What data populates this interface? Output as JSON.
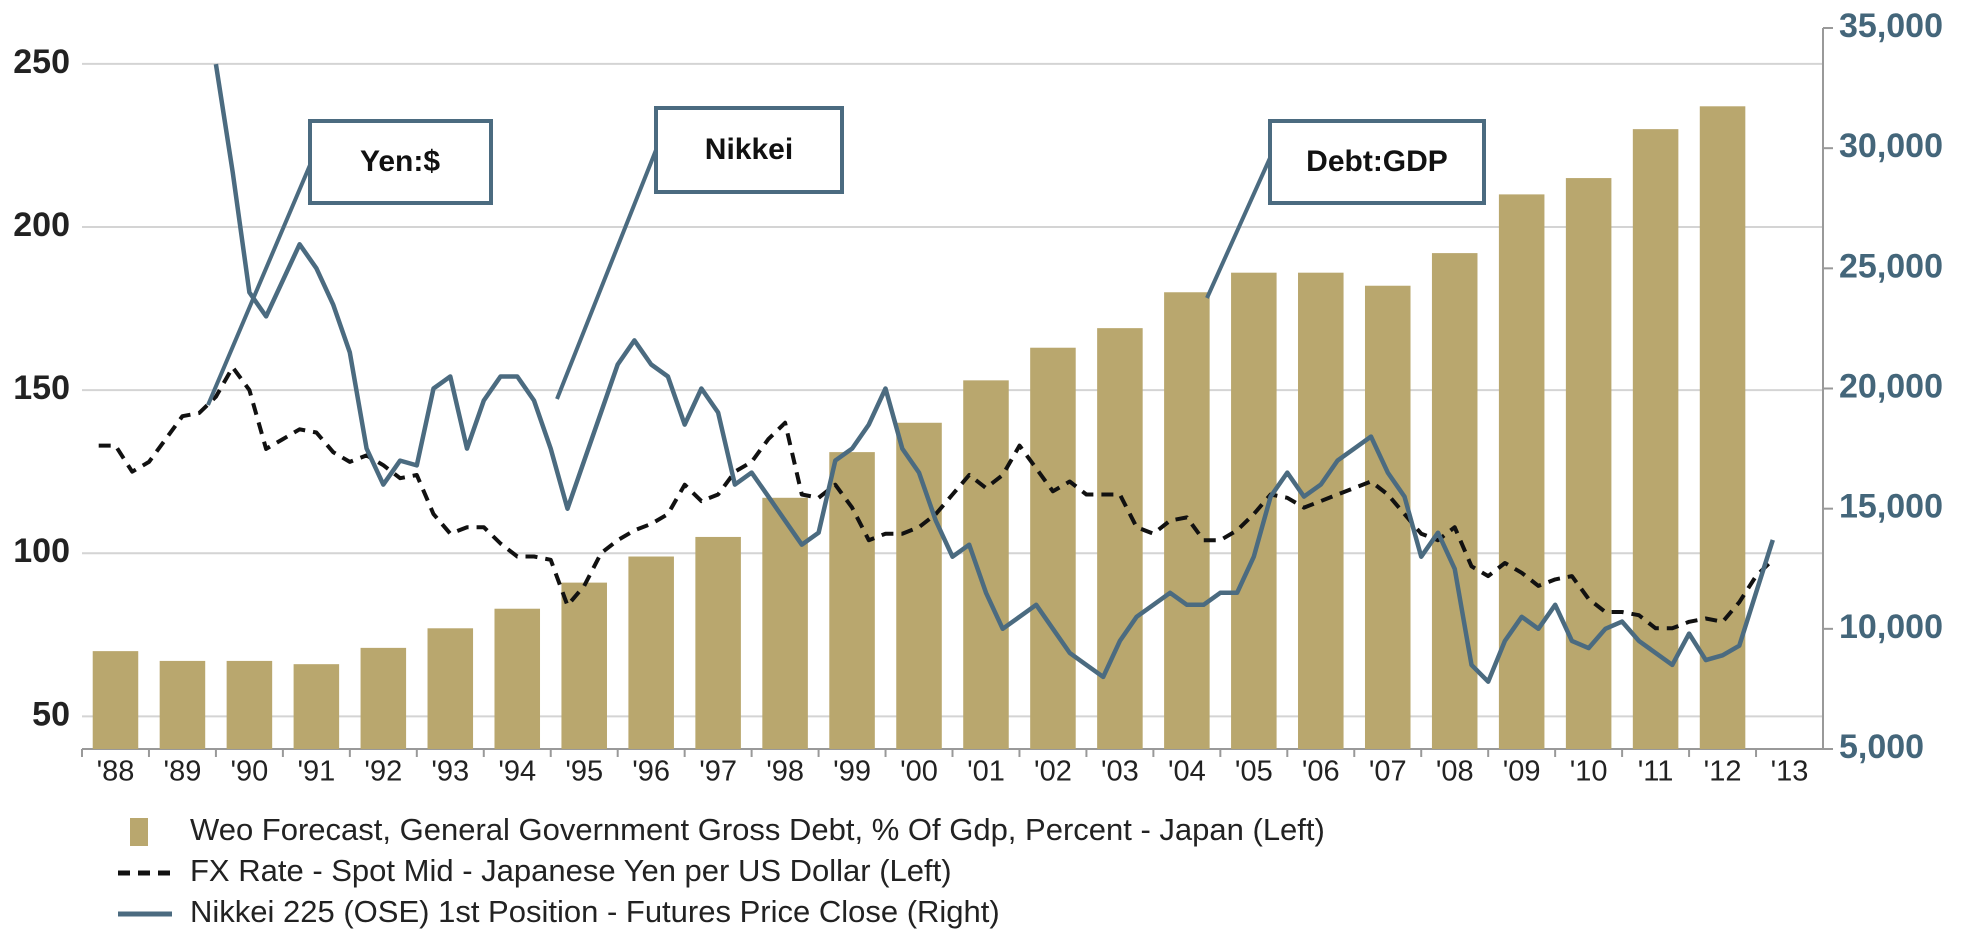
{
  "chart_data": {
    "type": "bar",
    "categories": [
      "'88",
      "'89",
      "'90",
      "'91",
      "'92",
      "'93",
      "'94",
      "'95",
      "'96",
      "'97",
      "'98",
      "'99",
      "'00",
      "'01",
      "'02",
      "'03",
      "'04",
      "'05",
      "'06",
      "'07",
      "'08",
      "'09",
      "'10",
      "'11",
      "'12",
      "'13"
    ],
    "xlim": [
      1988,
      2014
    ],
    "ylim": [
      40,
      261
    ],
    "yticks": [
      50,
      100,
      150,
      200,
      250
    ],
    "y2lim": [
      5000,
      35000
    ],
    "y2ticks": [
      {
        "value": 5000,
        "label": "5,000"
      },
      {
        "value": 10000,
        "label": "10,000"
      },
      {
        "value": 15000,
        "label": "15,000"
      },
      {
        "value": 20000,
        "label": "20,000"
      },
      {
        "value": 25000,
        "label": "25,000"
      },
      {
        "value": 30000,
        "label": "30,000"
      },
      {
        "value": 35000,
        "label": "35,000"
      }
    ],
    "grid": true,
    "annotations": [
      "Yen:$",
      "Nikkei",
      "Debt:GDP"
    ],
    "series": [
      {
        "name": "Weo Forecast, General Government Gross Debt, % Of Gdp, Percent - Japan  (Left)",
        "type": "bar",
        "color": "#b9a76e",
        "axis": "y",
        "values": [
          70,
          67,
          67,
          66,
          71,
          77,
          83,
          91,
          99,
          105,
          117,
          131,
          140,
          153,
          163,
          169,
          180,
          186,
          186,
          182,
          192,
          210,
          215,
          230,
          237,
          null
        ]
      },
      {
        "name": "FX Rate - Spot Mid - Japanese Yen per US Dollar  (Left)",
        "type": "line",
        "style": "dashed",
        "color": "#111111",
        "axis": "y",
        "x": [
          1988.25,
          1988.5,
          1988.75,
          1989,
          1989.25,
          1989.5,
          1989.75,
          1990,
          1990.25,
          1990.5,
          1990.75,
          1991,
          1991.25,
          1991.5,
          1991.75,
          1992,
          1992.25,
          1992.5,
          1992.75,
          1993,
          1993.25,
          1993.5,
          1993.75,
          1994,
          1994.25,
          1994.5,
          1994.75,
          1995,
          1995.25,
          1995.5,
          1995.75,
          1996,
          1996.25,
          1996.5,
          1996.75,
          1997,
          1997.25,
          1997.5,
          1997.75,
          1998,
          1998.25,
          1998.5,
          1998.75,
          1999,
          1999.25,
          1999.5,
          1999.75,
          2000,
          2000.25,
          2000.5,
          2000.75,
          2001,
          2001.25,
          2001.5,
          2001.75,
          2002,
          2002.25,
          2002.5,
          2002.75,
          2003,
          2003.25,
          2003.5,
          2003.75,
          2004,
          2004.25,
          2004.5,
          2004.75,
          2005,
          2005.25,
          2005.5,
          2005.75,
          2006,
          2006.25,
          2006.5,
          2006.75,
          2007,
          2007.25,
          2007.5,
          2007.75,
          2008,
          2008.25,
          2008.5,
          2008.75,
          2009,
          2009.25,
          2009.5,
          2009.75,
          2010,
          2010.25,
          2010.5,
          2010.75,
          2011,
          2011.25,
          2011.5,
          2011.75,
          2012,
          2012.25,
          2012.5,
          2012.75,
          2013,
          2013.25
        ],
        "values": [
          133,
          133,
          125,
          128,
          135,
          142,
          143,
          148,
          157,
          150,
          132,
          135,
          138,
          137,
          131,
          128,
          130,
          127,
          123,
          124,
          112,
          106,
          108,
          108,
          103,
          99,
          99,
          98,
          84,
          90,
          100,
          104,
          107,
          109,
          112,
          121,
          116,
          118,
          125,
          128,
          135,
          140,
          118,
          117,
          121,
          114,
          104,
          106,
          106,
          108,
          112,
          118,
          124,
          120,
          124,
          133,
          126,
          119,
          122,
          118,
          118,
          118,
          108,
          106,
          110,
          111,
          104,
          104,
          107,
          112,
          118,
          117,
          114,
          116,
          118,
          120,
          122,
          118,
          112,
          106,
          104,
          108,
          96,
          93,
          97,
          94,
          90,
          92,
          93,
          86,
          82,
          82,
          81,
          77,
          77,
          79,
          80,
          79,
          85,
          93,
          98
        ]
      },
      {
        "name": "Nikkei 225 (OSE) 1st Position - Futures Price Close  (Right)",
        "type": "line",
        "style": "solid",
        "color": "#4b6b80",
        "axis": "y2",
        "x": [
          1988.25,
          1988.5,
          1988.75,
          1989,
          1989.25,
          1989.5,
          1989.75,
          1990,
          1990.25,
          1990.5,
          1990.75,
          1991,
          1991.25,
          1991.5,
          1991.75,
          1992,
          1992.25,
          1992.5,
          1992.75,
          1993,
          1993.25,
          1993.5,
          1993.75,
          1994,
          1994.25,
          1994.5,
          1994.75,
          1995,
          1995.25,
          1995.5,
          1995.75,
          1996,
          1996.25,
          1996.5,
          1996.75,
          1997,
          1997.25,
          1997.5,
          1997.75,
          1998,
          1998.25,
          1998.5,
          1998.75,
          1999,
          1999.25,
          1999.5,
          1999.75,
          2000,
          2000.25,
          2000.5,
          2000.75,
          2001,
          2001.25,
          2001.5,
          2001.75,
          2002,
          2002.25,
          2002.5,
          2002.75,
          2003,
          2003.25,
          2003.5,
          2003.75,
          2004,
          2004.25,
          2004.5,
          2004.75,
          2005,
          2005.25,
          2005.5,
          2005.75,
          2006,
          2006.25,
          2006.5,
          2006.75,
          2007,
          2007.25,
          2007.5,
          2007.75,
          2008,
          2008.25,
          2008.5,
          2008.75,
          2009,
          2009.25,
          2009.5,
          2009.75,
          2010,
          2010.25,
          2010.5,
          2010.75,
          2011,
          2011.25,
          2011.5,
          2011.75,
          2012,
          2012.25,
          2012.5,
          2012.75,
          2013,
          2013.25
        ],
        "values": [
          null,
          null,
          null,
          null,
          null,
          null,
          null,
          33500,
          29000,
          24000,
          23000,
          24500,
          26000,
          25000,
          23500,
          21500,
          17500,
          16000,
          17000,
          16800,
          20000,
          20500,
          17500,
          19500,
          20500,
          20500,
          19500,
          17500,
          15000,
          17000,
          19000,
          21000,
          22000,
          21000,
          20500,
          18500,
          20000,
          19000,
          16000,
          16500,
          15500,
          14500,
          13500,
          14000,
          17000,
          17500,
          18500,
          20000,
          17500,
          16500,
          14500,
          13000,
          13500,
          11500,
          10000,
          10500,
          11000,
          10000,
          9000,
          8500,
          8000,
          9500,
          10500,
          11000,
          11500,
          11000,
          11000,
          11500,
          11500,
          13000,
          15500,
          16500,
          15500,
          16000,
          17000,
          17500,
          18000,
          16500,
          15500,
          13000,
          14000,
          12500,
          8500,
          7800,
          9500,
          10500,
          10000,
          11000,
          9500,
          9200,
          10000,
          10300,
          9500,
          9000,
          8500,
          9800,
          8700,
          8900,
          9300,
          11500,
          13700
        ]
      }
    ]
  }
}
